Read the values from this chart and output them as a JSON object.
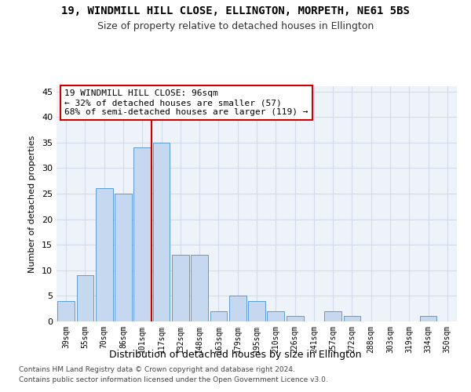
{
  "title1": "19, WINDMILL HILL CLOSE, ELLINGTON, MORPETH, NE61 5BS",
  "title2": "Size of property relative to detached houses in Ellington",
  "xlabel": "Distribution of detached houses by size in Ellington",
  "ylabel": "Number of detached properties",
  "bar_labels": [
    "39sqm",
    "55sqm",
    "70sqm",
    "86sqm",
    "101sqm",
    "117sqm",
    "132sqm",
    "148sqm",
    "163sqm",
    "179sqm",
    "195sqm",
    "210sqm",
    "226sqm",
    "241sqm",
    "257sqm",
    "272sqm",
    "288sqm",
    "303sqm",
    "319sqm",
    "334sqm",
    "350sqm"
  ],
  "bar_values": [
    4,
    9,
    26,
    25,
    34,
    35,
    13,
    13,
    2,
    5,
    4,
    2,
    1,
    0,
    2,
    1,
    0,
    0,
    0,
    1,
    0
  ],
  "bar_color": "#c5d8f0",
  "bar_edge_color": "#5b9bd5",
  "grid_color": "#d3dce8",
  "background_color": "#eef2f9",
  "vline_x": 4.5,
  "vline_color": "#cc0000",
  "annotation_text": "19 WINDMILL HILL CLOSE: 96sqm\n← 32% of detached houses are smaller (57)\n68% of semi-detached houses are larger (119) →",
  "annotation_box_facecolor": "#ffffff",
  "annotation_box_edgecolor": "#cc0000",
  "footer1": "Contains HM Land Registry data © Crown copyright and database right 2024.",
  "footer2": "Contains public sector information licensed under the Open Government Licence v3.0.",
  "ylim": [
    0,
    46
  ],
  "yticks": [
    0,
    5,
    10,
    15,
    20,
    25,
    30,
    35,
    40,
    45
  ]
}
